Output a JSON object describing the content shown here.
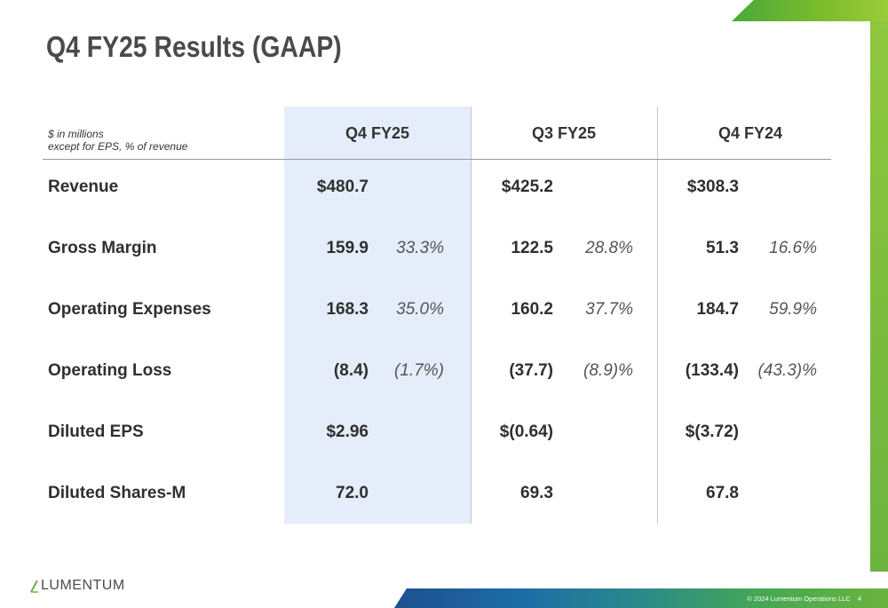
{
  "title": "Q4 FY25 Results (GAAP)",
  "units_note": [
    "$ in millions",
    "except for EPS, % of revenue"
  ],
  "columns": [
    "Q4 FY25",
    "Q3 FY25",
    "Q4 FY24"
  ],
  "rows": [
    {
      "label": "Revenue",
      "cells": [
        {
          "value": "$480.7",
          "pct": ""
        },
        {
          "value": "$425.2",
          "pct": ""
        },
        {
          "value": "$308.3",
          "pct": ""
        }
      ]
    },
    {
      "label": "Gross Margin",
      "cells": [
        {
          "value": "159.9",
          "pct": "33.3%"
        },
        {
          "value": "122.5",
          "pct": "28.8%"
        },
        {
          "value": "51.3",
          "pct": "16.6%"
        }
      ]
    },
    {
      "label": "Operating Expenses",
      "cells": [
        {
          "value": "168.3",
          "pct": "35.0%"
        },
        {
          "value": "160.2",
          "pct": "37.7%"
        },
        {
          "value": "184.7",
          "pct": "59.9%"
        }
      ]
    },
    {
      "label": "Operating Loss",
      "cells": [
        {
          "value": "(8.4)",
          "pct": "(1.7%)"
        },
        {
          "value": "(37.7)",
          "pct": "(8.9)%"
        },
        {
          "value": "(133.4)",
          "pct": "(43.3)%"
        }
      ]
    },
    {
      "label": "Diluted EPS",
      "cells": [
        {
          "value": "$2.96",
          "pct": ""
        },
        {
          "value": "$(0.64)",
          "pct": ""
        },
        {
          "value": "$(3.72)",
          "pct": ""
        }
      ]
    },
    {
      "label": "Diluted Shares-M",
      "cells": [
        {
          "value": "72.0",
          "pct": ""
        },
        {
          "value": "69.3",
          "pct": ""
        },
        {
          "value": "67.8",
          "pct": ""
        }
      ]
    }
  ],
  "logo": {
    "text": "LUMENTUM"
  },
  "footer": {
    "copyright": "© 2024 Lumentum Operations LLC",
    "page_number": "4"
  },
  "colors": {
    "highlight": "#e4edf9",
    "accent_green": "#6cb33f",
    "accent_blue": "#1f4f8f"
  }
}
